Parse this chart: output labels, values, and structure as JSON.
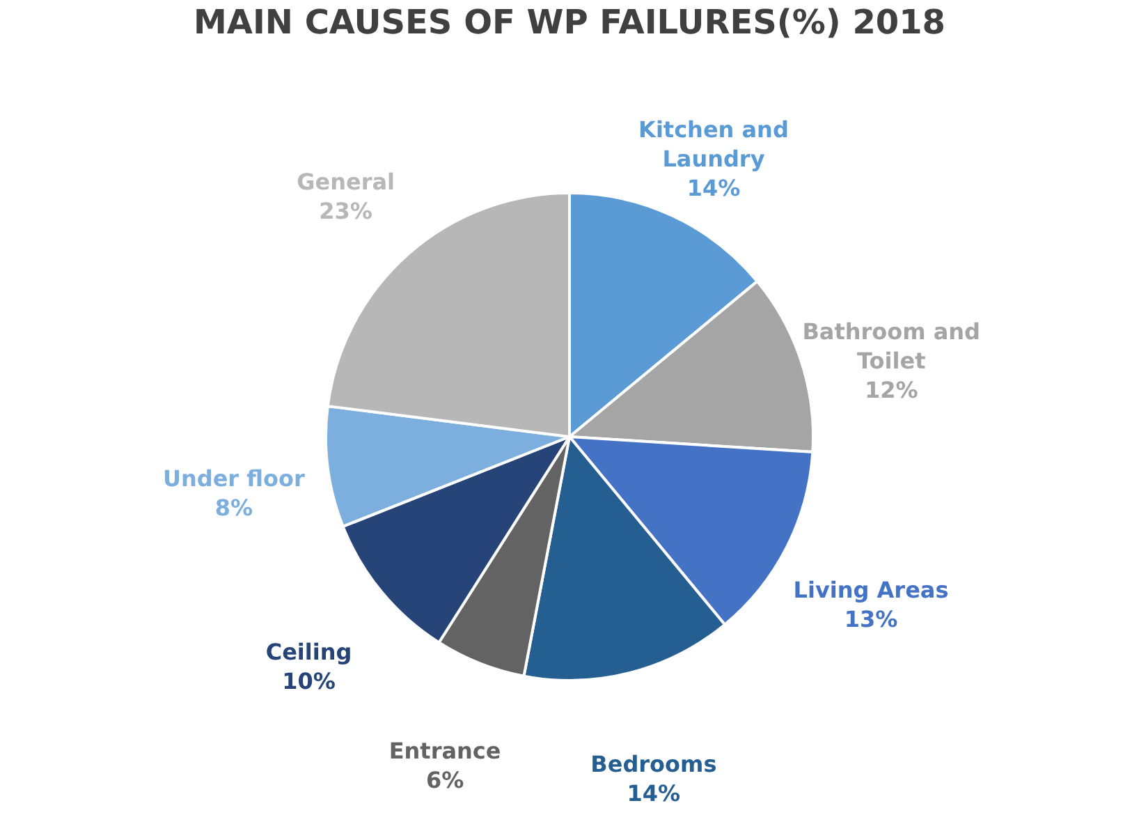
{
  "chart_data": {
    "type": "pie",
    "title": "MAIN CAUSES OF WP FAILURES(%) 2018",
    "categories": [
      "Kitchen and Laundry",
      "Bathroom and Toilet",
      "Living Areas",
      "Bedrooms",
      "Entrance",
      "Ceiling",
      "Under floor",
      "General"
    ],
    "values": [
      14,
      12,
      13,
      14,
      6,
      10,
      8,
      23
    ],
    "value_labels": [
      "14%",
      "12%",
      "13%",
      "14%",
      "6%",
      "10%",
      "8%",
      "23%"
    ],
    "colors": [
      "#5b9bd5",
      "#a5a5a5",
      "#4472c4",
      "#255e91",
      "#636363",
      "#264478",
      "#7cafdd",
      "#b7b7b7"
    ],
    "legend": false
  }
}
